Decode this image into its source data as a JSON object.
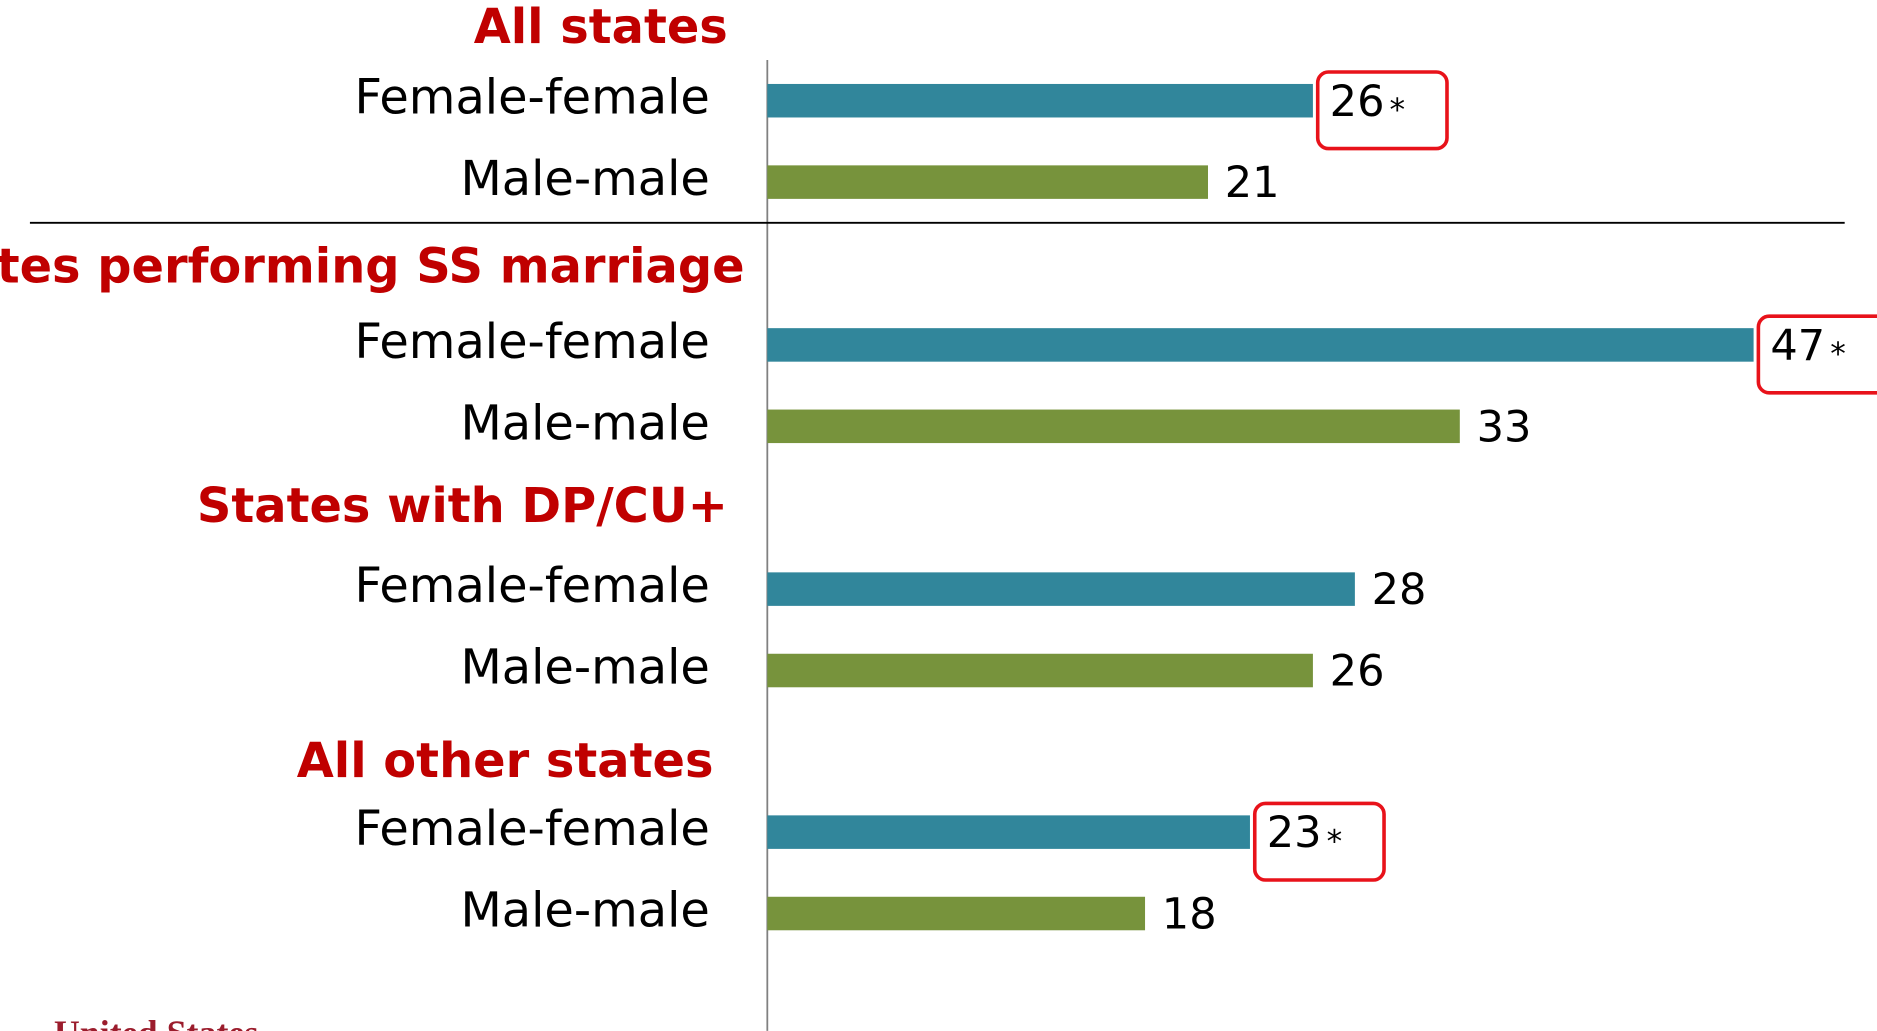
{
  "chart_data": {
    "type": "bar",
    "orientation": "horizontal",
    "groups": [
      "All states",
      "States performing SS marriage",
      "States with DP/CU+",
      "All other states"
    ],
    "series": [
      {
        "name": "Female-female",
        "color": "#31869b",
        "values": [
          26,
          47,
          28,
          23
        ],
        "highlight": [
          true,
          true,
          false,
          true
        ]
      },
      {
        "name": "Male-male",
        "color": "#77933c",
        "values": [
          21,
          33,
          26,
          18
        ],
        "highlight": [
          false,
          false,
          false,
          false
        ]
      }
    ],
    "highlight_marker": "*",
    "footer_logo": "United States"
  }
}
